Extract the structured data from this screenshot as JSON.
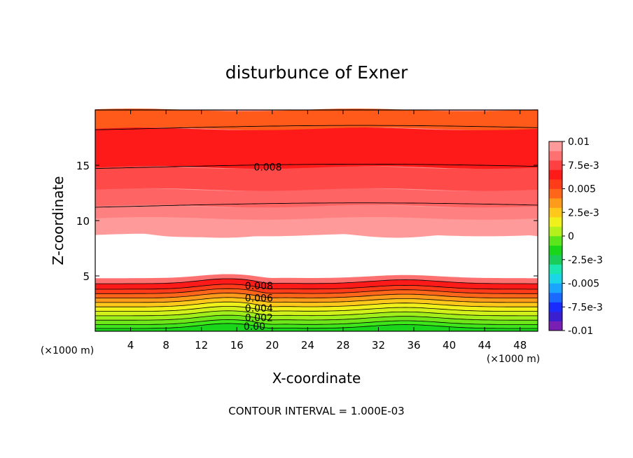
{
  "chart_data": {
    "type": "contour",
    "title": "disturbunce of Exner",
    "xlabel": "X-coordinate",
    "ylabel": "Z-coordinate",
    "x_unit": "(×1000 m)",
    "y_unit": "(×1000 m)",
    "xlim": [
      0,
      50
    ],
    "ylim": [
      0,
      20
    ],
    "x_ticks": [
      4,
      8,
      12,
      16,
      20,
      24,
      28,
      32,
      36,
      40,
      44,
      48
    ],
    "y_ticks": [
      5,
      10,
      15
    ],
    "footer": "CONTOUR INTERVAL = 1.000E-03",
    "colorbar": {
      "min": -0.01,
      "max": 0.01,
      "tick_values": [
        0.01,
        0.0075,
        0.005,
        0.0025,
        0,
        -0.0025,
        -0.005,
        -0.0075,
        -0.01
      ],
      "tick_labels": [
        "0.01",
        "7.5e-3",
        "0.005",
        "2.5e-3",
        "0",
        "-2.5e-3",
        "-0.005",
        "-7.5e-3",
        "-0.01"
      ],
      "colors_bottom_to_top": [
        "#7a1fb3",
        "#3a1fd0",
        "#1a2bff",
        "#1a6aff",
        "#1aa5ff",
        "#1ad6e6",
        "#1ae6b0",
        "#1acc5a",
        "#1ad61a",
        "#5ae61a",
        "#b4f01a",
        "#f0f01a",
        "#ffc81a",
        "#ff9b1a",
        "#ff661a",
        "#ff3c1a",
        "#ff1a1a",
        "#ff4040",
        "#ff7070",
        "#ff9a9a"
      ]
    },
    "white_band_z": [
      4.8,
      8.7
    ],
    "contour_labels": [
      {
        "text": "0.008",
        "x": 19.5,
        "z": 14.85
      },
      {
        "text": "0.008",
        "x": 18.5,
        "z": 4.1
      },
      {
        "text": "0.006",
        "x": 18.5,
        "z": 3.0
      },
      {
        "text": "0.004",
        "x": 18.5,
        "z": 2.1
      },
      {
        "text": "0.002",
        "x": 18.5,
        "z": 1.25
      },
      {
        "text": "0.00",
        "x": 18.0,
        "z": 0.45
      }
    ]
  }
}
